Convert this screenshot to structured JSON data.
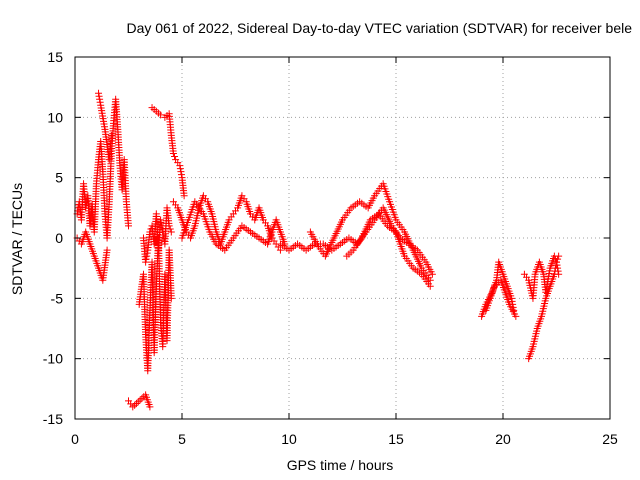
{
  "chart_data": {
    "type": "scatter",
    "title": "Day 061 of 2022, Sidereal Day-to-day VTEC variation (SDTVAR) for receiver bele",
    "xlabel": "GPS time / hours",
    "ylabel": "SDTVAR / TECUs",
    "xlim": [
      0,
      25
    ],
    "ylim": [
      -15,
      15
    ],
    "xticks": [
      "0",
      "5",
      "10",
      "15",
      "20",
      "25"
    ],
    "yticks": [
      "-15",
      "-10",
      "-5",
      "0",
      "5",
      "10",
      "15"
    ],
    "grid": true,
    "marker": "plus",
    "color": "#ff0000",
    "series": [
      {
        "name": "SDTVAR",
        "segments": [
          [
            [
              0.1,
              2.0
            ],
            [
              0.2,
              3.0
            ],
            [
              0.3,
              1.5
            ],
            [
              0.4,
              4.5
            ],
            [
              0.5,
              2.5
            ],
            [
              0.6,
              3.5
            ],
            [
              0.7,
              1.0
            ],
            [
              0.8,
              2.8
            ],
            [
              0.9,
              0.5
            ],
            [
              1.0,
              4.5
            ],
            [
              1.1,
              6.5
            ],
            [
              1.2,
              8.0
            ],
            [
              1.3,
              5.5
            ],
            [
              1.4,
              2.0
            ],
            [
              1.5,
              0.0
            ],
            [
              1.6,
              3.0
            ],
            [
              1.7,
              7.0
            ],
            [
              1.8,
              9.5
            ],
            [
              1.9,
              11.5
            ],
            [
              2.0,
              9.0
            ],
            [
              2.1,
              6.0
            ],
            [
              2.2,
              4.0
            ],
            [
              2.3,
              6.5
            ],
            [
              2.4,
              3.0
            ],
            [
              2.5,
              1.0
            ]
          ],
          [
            [
              0.1,
              0.0
            ],
            [
              0.3,
              -0.5
            ],
            [
              0.5,
              0.5
            ],
            [
              0.7,
              -0.5
            ],
            [
              1.1,
              -2.5
            ],
            [
              1.3,
              -3.5
            ],
            [
              1.5,
              -1.0
            ]
          ],
          [
            [
              1.1,
              12.0
            ],
            [
              1.2,
              11.0
            ],
            [
              1.4,
              9.0
            ],
            [
              1.6,
              6.5
            ],
            [
              1.7,
              8.5
            ]
          ],
          [
            [
              2.5,
              -13.5
            ],
            [
              2.7,
              -14.0
            ],
            [
              3.3,
              -13.0
            ],
            [
              3.5,
              -14.0
            ]
          ],
          [
            [
              3.0,
              -5.5
            ],
            [
              3.2,
              -3.0
            ],
            [
              3.3,
              -8.0
            ],
            [
              3.4,
              -11.0
            ],
            [
              3.5,
              -6.0
            ],
            [
              3.6,
              -2.0
            ],
            [
              3.7,
              -9.5
            ],
            [
              3.8,
              -4.0
            ],
            [
              3.9,
              0.0
            ],
            [
              4.0,
              -7.0
            ],
            [
              4.1,
              -9.0
            ],
            [
              4.2,
              -3.0
            ],
            [
              4.3,
              -8.5
            ],
            [
              4.4,
              -1.0
            ],
            [
              4.5,
              -5.0
            ]
          ],
          [
            [
              3.2,
              0.0
            ],
            [
              3.3,
              -2.0
            ],
            [
              3.4,
              -1.0
            ],
            [
              3.5,
              0.5
            ],
            [
              3.6,
              1.0
            ],
            [
              3.7,
              -0.5
            ],
            [
              3.8,
              2.0
            ],
            [
              3.9,
              -1.0
            ],
            [
              4.0,
              1.5
            ],
            [
              4.1,
              0.5
            ],
            [
              4.2,
              -0.5
            ],
            [
              4.3,
              2.5
            ],
            [
              4.4,
              1.0
            ],
            [
              4.5,
              0.5
            ]
          ],
          [
            [
              3.6,
              10.8
            ],
            [
              3.8,
              10.5
            ],
            [
              4.0,
              10.2
            ],
            [
              4.2,
              10.0
            ],
            [
              4.4,
              10.3
            ],
            [
              4.5,
              8.5
            ],
            [
              4.6,
              7.0
            ],
            [
              4.7,
              6.5
            ],
            [
              4.9,
              6.0
            ],
            [
              5.0,
              5.0
            ],
            [
              5.1,
              3.5
            ]
          ],
          [
            [
              4.6,
              3.0
            ],
            [
              4.8,
              2.5
            ],
            [
              5.0,
              1.5
            ],
            [
              5.2,
              0.5
            ],
            [
              5.4,
              0.0
            ],
            [
              5.6,
              1.0
            ],
            [
              5.8,
              2.5
            ],
            [
              6.0,
              3.5
            ],
            [
              6.2,
              3.0
            ],
            [
              6.4,
              2.0
            ],
            [
              6.6,
              0.5
            ],
            [
              6.8,
              -0.5
            ],
            [
              7.0,
              0.5
            ],
            [
              7.2,
              1.5
            ],
            [
              7.4,
              2.0
            ],
            [
              7.6,
              2.5
            ],
            [
              7.8,
              3.5
            ],
            [
              8.0,
              3.0
            ],
            [
              8.2,
              2.0
            ],
            [
              8.4,
              1.5
            ],
            [
              8.6,
              2.5
            ],
            [
              8.8,
              1.5
            ],
            [
              9.0,
              1.0
            ],
            [
              9.2,
              0.0
            ],
            [
              9.4,
              -0.5
            ],
            [
              9.6,
              -1.0
            ]
          ],
          [
            [
              5.0,
              0.0
            ],
            [
              5.3,
              1.5
            ],
            [
              5.6,
              3.0
            ],
            [
              6.0,
              2.0
            ],
            [
              6.3,
              0.5
            ],
            [
              6.6,
              -0.5
            ],
            [
              7.0,
              -1.0
            ],
            [
              7.4,
              0.0
            ],
            [
              7.8,
              1.0
            ],
            [
              8.2,
              0.5
            ],
            [
              8.6,
              0.0
            ],
            [
              9.0,
              -0.5
            ],
            [
              9.4,
              1.5
            ],
            [
              9.8,
              -0.5
            ]
          ],
          [
            [
              9.6,
              -0.5
            ],
            [
              10.0,
              -1.0
            ],
            [
              10.4,
              -0.5
            ],
            [
              10.8,
              -1.0
            ],
            [
              11.2,
              -0.5
            ],
            [
              11.6,
              -0.5
            ],
            [
              12.0,
              -1.0
            ],
            [
              12.4,
              -0.5
            ],
            [
              12.8,
              0.0
            ],
            [
              13.2,
              -0.5
            ],
            [
              13.6,
              0.5
            ],
            [
              14.0,
              1.5
            ],
            [
              14.4,
              2.5
            ],
            [
              14.8,
              1.0
            ],
            [
              15.2,
              0.0
            ],
            [
              15.6,
              -0.5
            ],
            [
              16.0,
              -1.0
            ],
            [
              16.4,
              -2.0
            ],
            [
              16.7,
              -3.0
            ]
          ],
          [
            [
              11.0,
              0.5
            ],
            [
              11.3,
              -0.5
            ],
            [
              11.7,
              -1.5
            ],
            [
              12.1,
              0.0
            ],
            [
              12.5,
              1.5
            ],
            [
              12.9,
              2.5
            ],
            [
              13.3,
              3.0
            ],
            [
              13.7,
              2.5
            ],
            [
              14.0,
              3.5
            ],
            [
              14.4,
              4.5
            ],
            [
              14.7,
              3.0
            ],
            [
              15.0,
              1.5
            ],
            [
              15.4,
              0.5
            ],
            [
              15.8,
              -1.0
            ],
            [
              16.2,
              -2.5
            ],
            [
              16.6,
              -3.5
            ]
          ],
          [
            [
              12.7,
              -1.5
            ],
            [
              13.0,
              -1.0
            ],
            [
              13.4,
              0.0
            ],
            [
              13.8,
              1.5
            ],
            [
              14.2,
              2.0
            ],
            [
              14.6,
              1.0
            ],
            [
              15.0,
              0.5
            ],
            [
              15.4,
              -1.5
            ],
            [
              15.8,
              -2.5
            ],
            [
              16.2,
              -3.0
            ],
            [
              16.6,
              -4.0
            ]
          ],
          [
            [
              19.0,
              -6.5
            ],
            [
              19.2,
              -5.5
            ],
            [
              19.5,
              -4.5
            ],
            [
              19.7,
              -3.5
            ],
            [
              19.8,
              -2.0
            ],
            [
              20.0,
              -3.0
            ],
            [
              20.2,
              -4.0
            ],
            [
              20.4,
              -5.0
            ],
            [
              20.5,
              -6.0
            ]
          ],
          [
            [
              19.2,
              -6.0
            ],
            [
              19.4,
              -5.0
            ],
            [
              19.6,
              -4.0
            ],
            [
              19.9,
              -3.5
            ],
            [
              20.1,
              -4.5
            ],
            [
              20.3,
              -5.5
            ],
            [
              20.6,
              -6.5
            ]
          ],
          [
            [
              21.0,
              -3.0
            ],
            [
              21.2,
              -3.5
            ],
            [
              21.4,
              -5.0
            ],
            [
              21.5,
              -3.0
            ],
            [
              21.7,
              -2.0
            ],
            [
              21.9,
              -3.0
            ],
            [
              22.0,
              -4.5
            ],
            [
              22.2,
              -2.5
            ],
            [
              22.4,
              -1.5
            ],
            [
              22.5,
              -2.0
            ],
            [
              22.6,
              -3.0
            ]
          ],
          [
            [
              21.2,
              -10.0
            ],
            [
              21.4,
              -9.0
            ],
            [
              21.6,
              -7.5
            ],
            [
              21.8,
              -6.5
            ],
            [
              22.0,
              -5.0
            ],
            [
              22.2,
              -4.0
            ],
            [
              22.4,
              -3.0
            ],
            [
              22.5,
              -2.0
            ],
            [
              22.6,
              -1.5
            ]
          ]
        ]
      }
    ]
  }
}
